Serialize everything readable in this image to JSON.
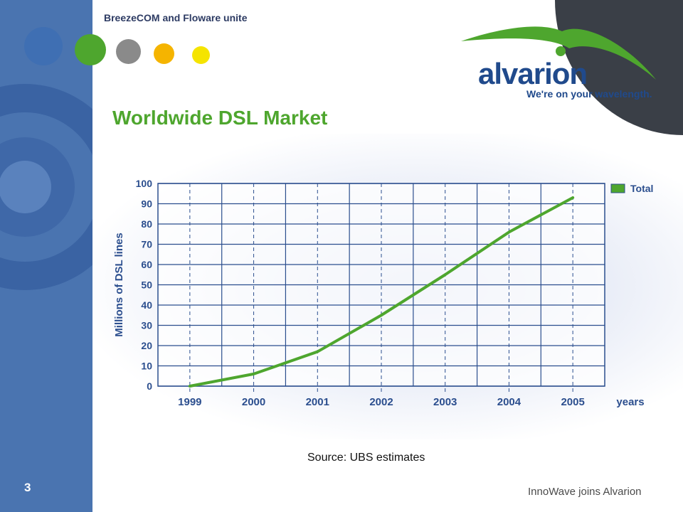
{
  "header": {
    "tagline": "BreezeCOM and Floware unite",
    "dot_colors": [
      "#3f6fb3",
      "#4ea62e",
      "#8a8a8a",
      "#f5b400",
      "#f5e400"
    ]
  },
  "logo": {
    "word": "alvarion",
    "slogan": "We're on your wavelength.",
    "colors": {
      "word": "#204a8c",
      "swoosh": "#4ea62e"
    }
  },
  "slide": {
    "title": "Worldwide DSL Market",
    "source": "Source: UBS estimates",
    "page_number": "3",
    "footer": "InnoWave joins Alvarion"
  },
  "colors": {
    "accent_green": "#4ea62e",
    "grid_blue": "#2b4e8e",
    "sidebar_blue": "#4a74b0"
  },
  "chart_data": {
    "type": "line",
    "title": "",
    "xlabel": "years",
    "ylabel": "Millions of DSL lines",
    "categories": [
      "1999",
      "2000",
      "2001",
      "2002",
      "2003",
      "2004",
      "2005"
    ],
    "series": [
      {
        "name": "Total",
        "values": [
          0,
          6,
          17,
          35,
          55,
          76,
          93
        ],
        "color": "#4ea62e"
      }
    ],
    "ylim": [
      0,
      100
    ],
    "yticks": [
      "0",
      "10",
      "20",
      "30",
      "40",
      "50",
      "60",
      "70",
      "80",
      "90",
      "100"
    ],
    "grid": true,
    "legend": "top-right"
  }
}
